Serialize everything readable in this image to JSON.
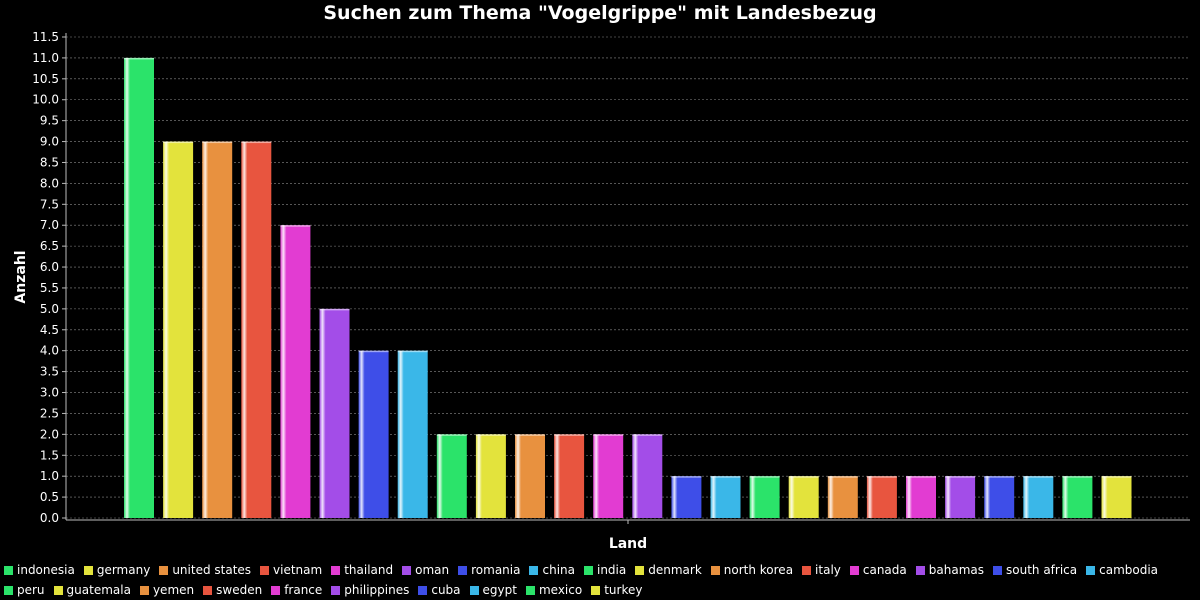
{
  "chart_data": {
    "type": "bar",
    "title": "Suchen zum Thema \"Vogelgrippe\" mit Landesbezug",
    "xlabel": "Land",
    "ylabel": "Anzahl",
    "ylim": [
      0,
      11.5
    ],
    "ytick_step": 0.5,
    "grid": true,
    "legend_position": "bottom",
    "categories": [
      "indonesia",
      "germany",
      "united states",
      "vietnam",
      "thailand",
      "oman",
      "romania",
      "china",
      "india",
      "denmark",
      "north korea",
      "italy",
      "canada",
      "bahamas",
      "south africa",
      "cambodia",
      "peru",
      "guatemala",
      "yemen",
      "sweden",
      "france",
      "philippines",
      "cuba",
      "egypt",
      "mexico",
      "turkey"
    ],
    "values": [
      11,
      9,
      9,
      9,
      7,
      5,
      4,
      4,
      2,
      2,
      2,
      2,
      2,
      2,
      1,
      1,
      1,
      1,
      1,
      1,
      1,
      1,
      1,
      1,
      1,
      1
    ],
    "colors": [
      "#2be36a",
      "#e3e33c",
      "#e8913f",
      "#e8553f",
      "#e23cd2",
      "#a34de8",
      "#3e4ee8",
      "#3ab7e8",
      "#2be36a",
      "#e3e33c",
      "#e8913f",
      "#e8553f",
      "#e23cd2",
      "#a34de8",
      "#3e4ee8",
      "#3ab7e8",
      "#2be36a",
      "#e3e33c",
      "#e8913f",
      "#e8553f",
      "#e23cd2",
      "#a34de8",
      "#3e4ee8",
      "#3ab7e8",
      "#2be36a",
      "#e3e33c"
    ]
  }
}
